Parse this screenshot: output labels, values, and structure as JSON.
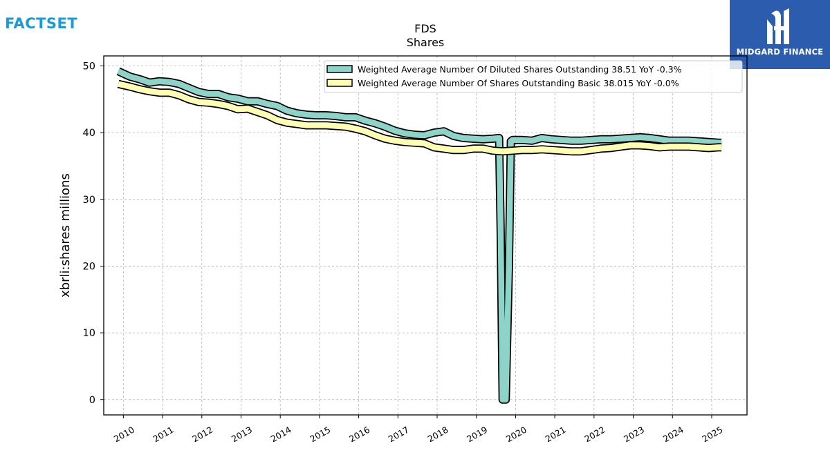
{
  "branding": {
    "left_logo": "FACTSET",
    "right_logo": "MIDGARD FINANCE",
    "right_logo_bg": "#2c5cae",
    "left_logo_color": "#1a9ad6"
  },
  "chart_data": {
    "type": "area",
    "title": "FDS",
    "subtitle": "Shares",
    "xlabel": "",
    "ylabel": "xbrli:shares millions",
    "xlim": [
      2009.5,
      2025.9
    ],
    "ylim": [
      -2.3,
      51.5
    ],
    "yticks": [
      0,
      10,
      20,
      30,
      40,
      50
    ],
    "xticks": [
      "2010",
      "2011",
      "2012",
      "2013",
      "2014",
      "2015",
      "2016",
      "2017",
      "2018",
      "2019",
      "2020",
      "2021",
      "2022",
      "2023",
      "2024",
      "2025"
    ],
    "grid": true,
    "legend_position": "top-right",
    "series": [
      {
        "name": "Weighted Average Number Of Diluted Shares Outstanding",
        "legend_label": "Weighted Average Number Of Diluted Shares Outstanding  38.51 YoY -0.3%",
        "color": "#8dd3c7",
        "x": [
          2009.87,
          2010.17,
          2010.42,
          2010.67,
          2010.92,
          2011.17,
          2011.42,
          2011.67,
          2011.92,
          2012.17,
          2012.42,
          2012.67,
          2012.92,
          2013.17,
          2013.42,
          2013.67,
          2013.92,
          2014.17,
          2014.42,
          2014.67,
          2014.92,
          2015.17,
          2015.42,
          2015.67,
          2015.92,
          2016.17,
          2016.42,
          2016.67,
          2016.92,
          2017.17,
          2017.42,
          2017.67,
          2017.92,
          2018.17,
          2018.42,
          2018.67,
          2018.92,
          2019.17,
          2019.42,
          2019.58,
          2019.62,
          2019.67,
          2019.75,
          2019.83,
          2019.88,
          2019.92,
          2020.17,
          2020.42,
          2020.67,
          2020.92,
          2021.17,
          2021.42,
          2021.67,
          2021.92,
          2022.17,
          2022.42,
          2022.67,
          2022.92,
          2023.17,
          2023.42,
          2023.67,
          2023.92,
          2024.17,
          2024.42,
          2024.67,
          2024.92,
          2025.17,
          2025.25
        ],
        "values": [
          49.2,
          48.4,
          48.0,
          47.5,
          47.7,
          47.6,
          47.3,
          46.7,
          46.1,
          45.8,
          45.8,
          45.3,
          45.1,
          44.7,
          44.7,
          44.3,
          44.0,
          43.3,
          42.9,
          42.7,
          42.6,
          42.6,
          42.5,
          42.3,
          42.3,
          41.8,
          41.4,
          40.9,
          40.3,
          39.9,
          39.7,
          39.6,
          40.0,
          40.2,
          39.5,
          39.2,
          39.1,
          39.0,
          39.1,
          39.2,
          25.0,
          0.0,
          0.0,
          20.0,
          38.7,
          38.9,
          38.9,
          38.8,
          39.2,
          39.0,
          38.9,
          38.8,
          38.8,
          38.9,
          39.0,
          39.0,
          39.1,
          39.2,
          39.3,
          39.2,
          39.0,
          38.8,
          38.8,
          38.8,
          38.7,
          38.6,
          38.5,
          38.5
        ]
      },
      {
        "name": "Weighted Average Number Of Shares Outstanding Basic",
        "legend_label": "Weighted Average Number Of Shares Outstanding Basic  38.015 YoY -0.0%",
        "color": "#ffffb3",
        "x": [
          2009.87,
          2010.17,
          2010.42,
          2010.67,
          2010.92,
          2011.17,
          2011.42,
          2011.67,
          2011.92,
          2012.17,
          2012.42,
          2012.67,
          2012.92,
          2013.17,
          2013.42,
          2013.67,
          2013.92,
          2014.17,
          2014.42,
          2014.67,
          2014.92,
          2015.17,
          2015.42,
          2015.67,
          2015.92,
          2016.17,
          2016.42,
          2016.67,
          2016.92,
          2017.17,
          2017.42,
          2017.67,
          2017.92,
          2018.17,
          2018.42,
          2018.67,
          2018.92,
          2019.17,
          2019.42,
          2019.67,
          2019.92,
          2020.17,
          2020.42,
          2020.67,
          2020.92,
          2021.17,
          2021.42,
          2021.67,
          2021.92,
          2022.17,
          2022.42,
          2022.67,
          2022.92,
          2023.17,
          2023.42,
          2023.67,
          2023.92,
          2024.17,
          2024.42,
          2024.67,
          2024.92,
          2025.17,
          2025.25
        ],
        "values": [
          47.3,
          46.9,
          46.5,
          46.2,
          46.0,
          46.0,
          45.6,
          45.0,
          44.6,
          44.5,
          44.3,
          44.0,
          43.5,
          43.6,
          43.1,
          42.6,
          41.9,
          41.5,
          41.3,
          41.1,
          41.1,
          41.1,
          41.0,
          40.9,
          40.6,
          40.2,
          39.6,
          39.1,
          38.8,
          38.6,
          38.5,
          38.4,
          37.8,
          37.6,
          37.4,
          37.4,
          37.6,
          37.6,
          37.3,
          37.2,
          37.3,
          37.4,
          37.4,
          37.5,
          37.4,
          37.3,
          37.2,
          37.2,
          37.4,
          37.6,
          37.7,
          37.9,
          38.1,
          38.1,
          38.0,
          37.8,
          37.9,
          37.9,
          37.9,
          37.8,
          37.7,
          37.8,
          37.8
        ]
      }
    ]
  }
}
